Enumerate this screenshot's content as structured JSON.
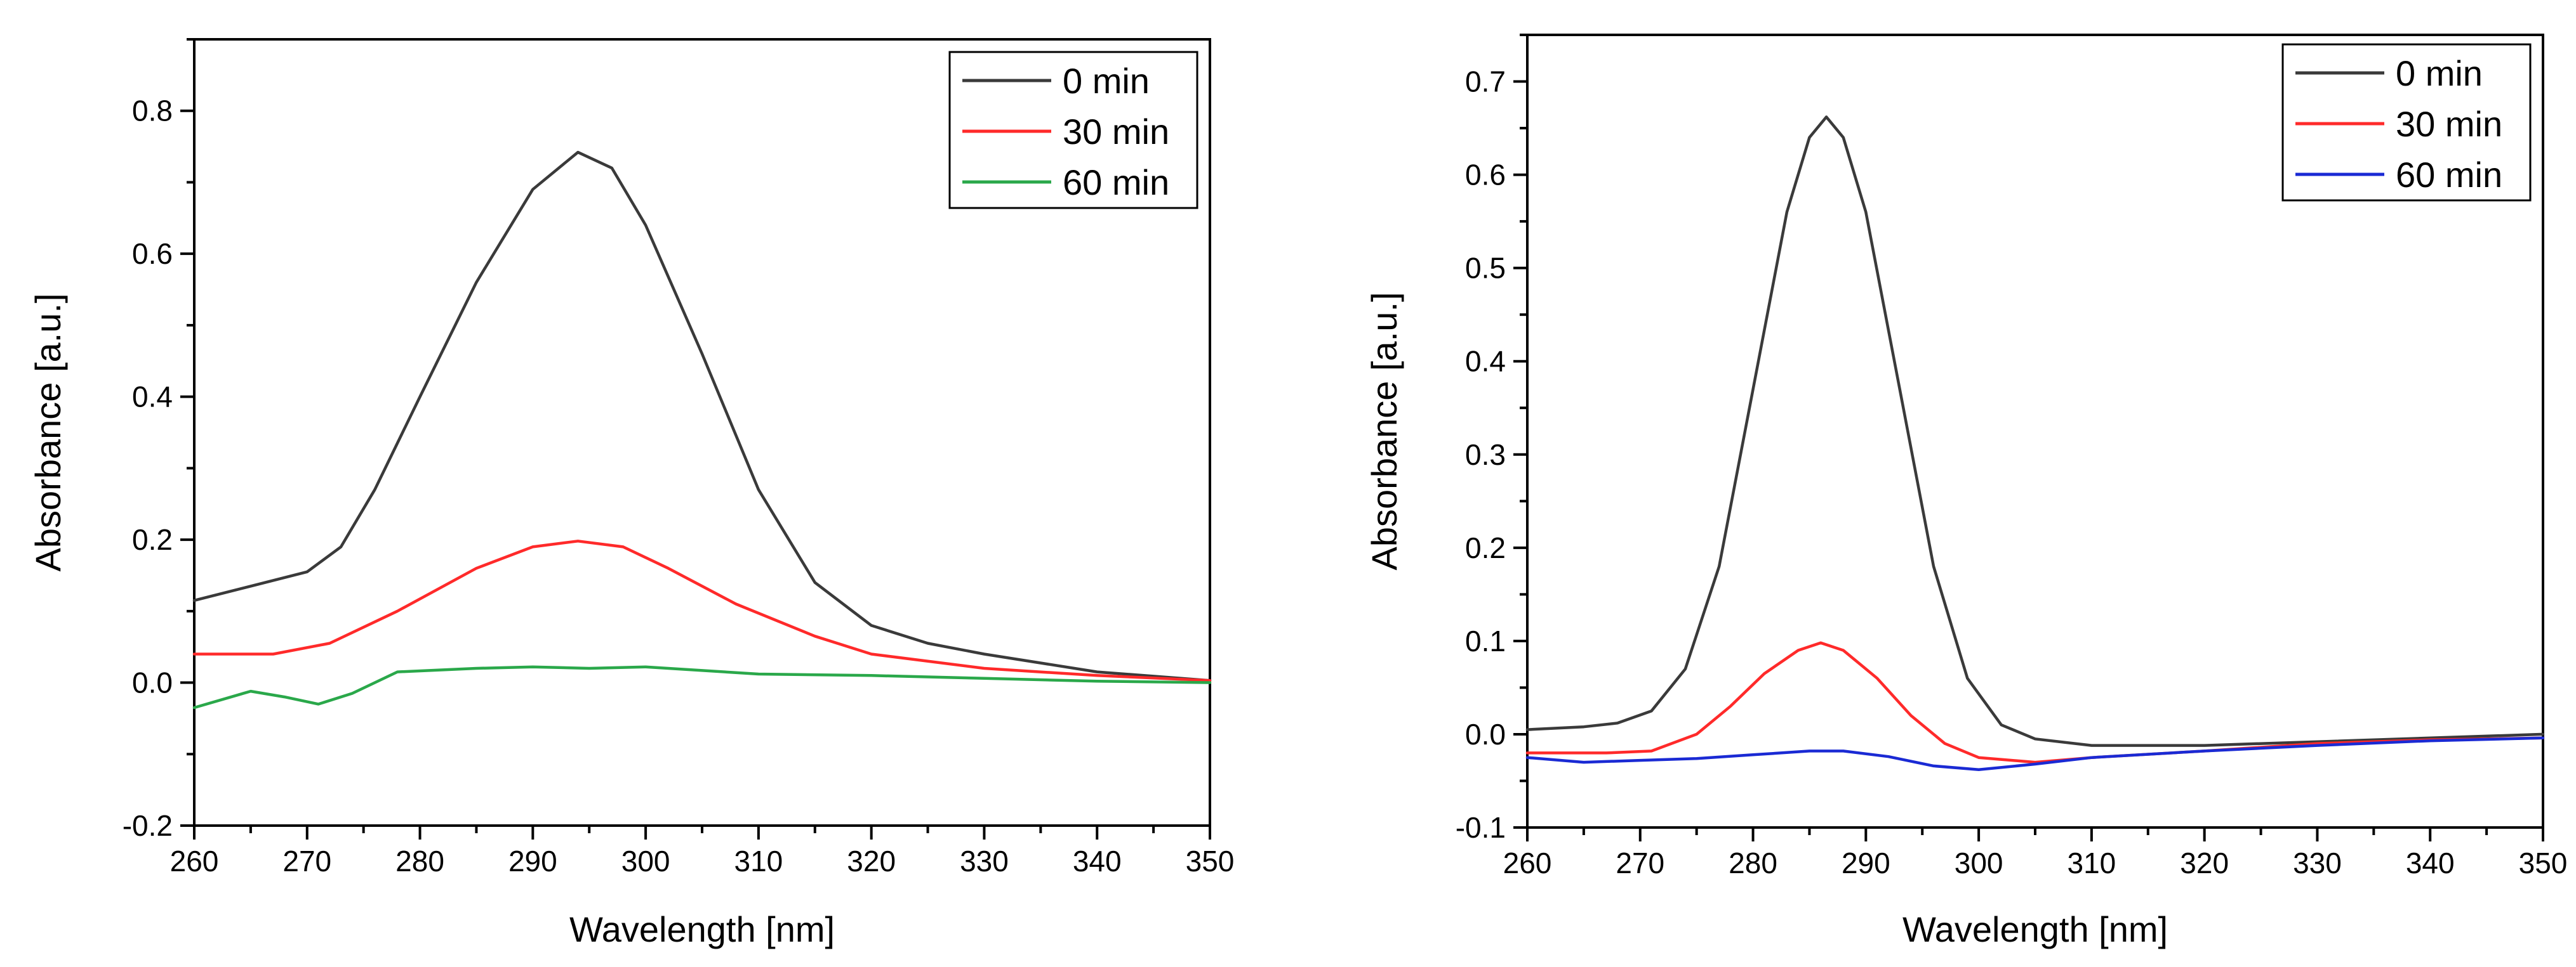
{
  "chart_data": [
    {
      "type": "line",
      "title": "",
      "xlabel": "Wavelength [nm]",
      "ylabel": "Absorbance [a.u.]",
      "xlim": [
        260,
        350
      ],
      "ylim": [
        -0.2,
        0.9
      ],
      "xticks": [
        260,
        270,
        280,
        290,
        300,
        310,
        320,
        330,
        340,
        350
      ],
      "xtick_labels": [
        "260",
        "270",
        "280",
        "290",
        "300",
        "310",
        "320",
        "330",
        "340",
        "350"
      ],
      "yticks": [
        -0.2,
        0.0,
        0.2,
        0.4,
        0.6,
        0.8
      ],
      "ytick_labels": [
        "-0.2",
        "0.0",
        "0.2",
        "0.4",
        "0.6",
        "0.8"
      ],
      "legend_position": "top-right",
      "series": [
        {
          "name": "0 min",
          "color": "#3a3a3a",
          "x": [
            260,
            265,
            270,
            273,
            276,
            280,
            285,
            290,
            294,
            297,
            300,
            305,
            310,
            315,
            320,
            325,
            330,
            340,
            350
          ],
          "y": [
            0.115,
            0.135,
            0.155,
            0.19,
            0.27,
            0.4,
            0.56,
            0.69,
            0.742,
            0.72,
            0.64,
            0.46,
            0.27,
            0.14,
            0.08,
            0.055,
            0.04,
            0.015,
            0.003
          ]
        },
        {
          "name": "30 min",
          "color": "#ff2a2a",
          "x": [
            260,
            267,
            272,
            278,
            285,
            290,
            294,
            298,
            302,
            308,
            315,
            320,
            330,
            340,
            350
          ],
          "y": [
            0.04,
            0.04,
            0.055,
            0.1,
            0.16,
            0.19,
            0.198,
            0.19,
            0.16,
            0.11,
            0.065,
            0.04,
            0.02,
            0.01,
            0.003
          ]
        },
        {
          "name": "60 min",
          "color": "#2aa84a",
          "x": [
            260,
            265,
            268,
            271,
            274,
            278,
            285,
            290,
            295,
            300,
            310,
            320,
            330,
            340,
            350
          ],
          "y": [
            -0.035,
            -0.012,
            -0.02,
            -0.03,
            -0.015,
            0.015,
            0.02,
            0.022,
            0.02,
            0.022,
            0.012,
            0.01,
            0.006,
            0.002,
            0.0
          ]
        }
      ]
    },
    {
      "type": "line",
      "title": "",
      "xlabel": "Wavelength [nm]",
      "ylabel": "Absorbance [a.u.]",
      "xlim": [
        260,
        350
      ],
      "ylim": [
        -0.1,
        0.75
      ],
      "xticks": [
        260,
        270,
        280,
        290,
        300,
        310,
        320,
        330,
        340,
        350
      ],
      "xtick_labels": [
        "260",
        "270",
        "280",
        "290",
        "300",
        "310",
        "320",
        "330",
        "340",
        "350"
      ],
      "yticks": [
        -0.1,
        0.0,
        0.1,
        0.2,
        0.3,
        0.4,
        0.5,
        0.6,
        0.7
      ],
      "ytick_labels": [
        "-0.1",
        "0.0",
        "0.1",
        "0.2",
        "0.3",
        "0.4",
        "0.5",
        "0.6",
        "0.7"
      ],
      "legend_position": "top-right",
      "series": [
        {
          "name": "0 min",
          "color": "#3a3a3a",
          "x": [
            260,
            265,
            268,
            271,
            274,
            277,
            280,
            283,
            285,
            286.5,
            288,
            290,
            293,
            296,
            299,
            302,
            305,
            310,
            320,
            330,
            340,
            350
          ],
          "y": [
            0.005,
            0.008,
            0.012,
            0.025,
            0.07,
            0.18,
            0.37,
            0.56,
            0.64,
            0.662,
            0.64,
            0.56,
            0.37,
            0.18,
            0.06,
            0.01,
            -0.005,
            -0.012,
            -0.012,
            -0.008,
            -0.004,
            0.0
          ]
        },
        {
          "name": "30 min",
          "color": "#ff2a2a",
          "x": [
            260,
            267,
            271,
            275,
            278,
            281,
            284,
            286,
            288,
            291,
            294,
            297,
            300,
            305,
            310,
            320,
            330,
            340,
            350
          ],
          "y": [
            -0.02,
            -0.02,
            -0.018,
            0.0,
            0.03,
            0.065,
            0.09,
            0.098,
            0.09,
            0.06,
            0.02,
            -0.01,
            -0.025,
            -0.03,
            -0.025,
            -0.018,
            -0.01,
            -0.006,
            -0.004
          ]
        },
        {
          "name": "60 min",
          "color": "#1a2ad4",
          "x": [
            260,
            265,
            270,
            275,
            280,
            285,
            288,
            292,
            296,
            300,
            305,
            310,
            320,
            330,
            340,
            350
          ],
          "y": [
            -0.025,
            -0.03,
            -0.028,
            -0.026,
            -0.022,
            -0.018,
            -0.018,
            -0.024,
            -0.034,
            -0.038,
            -0.032,
            -0.025,
            -0.018,
            -0.012,
            -0.007,
            -0.004
          ]
        }
      ]
    }
  ]
}
